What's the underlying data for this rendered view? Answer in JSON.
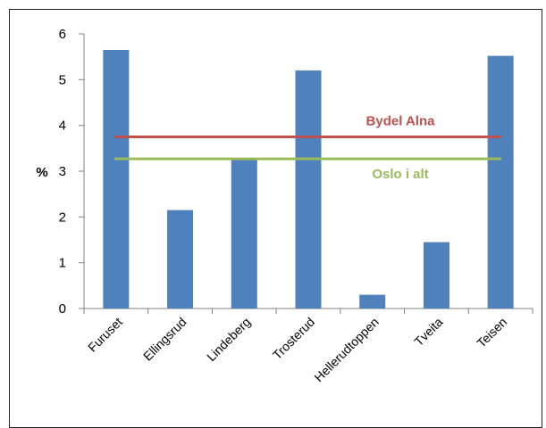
{
  "chart_data": {
    "type": "bar",
    "categories": [
      "Furuset",
      "Ellingsrud",
      "Lindeberg",
      "Trosterud",
      "Hellerudtoppen",
      "Tveita",
      "Teisen"
    ],
    "values": [
      5.65,
      2.15,
      3.25,
      5.2,
      0.3,
      1.45,
      5.52
    ],
    "ylabel": "%",
    "ylim": [
      0,
      6
    ],
    "yticks": [
      0,
      1,
      2,
      3,
      4,
      5,
      6
    ],
    "bar_color": "#4f81bd",
    "grid": false,
    "reference_lines": [
      {
        "name": "Bydel Alna",
        "value": 3.75,
        "color": "#c0504d"
      },
      {
        "name": "Oslo i alt",
        "value": 3.27,
        "color": "#9bbb59"
      }
    ]
  }
}
